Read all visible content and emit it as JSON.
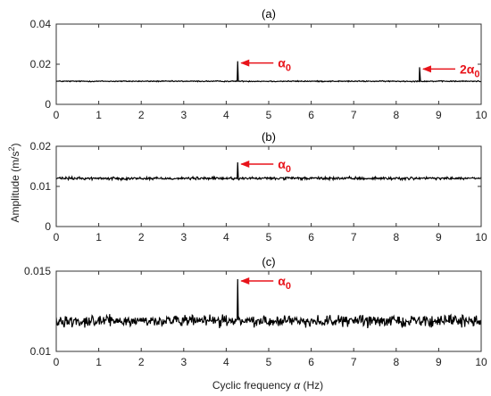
{
  "colors": {
    "trace": "#000000",
    "annotation": "#e8141b",
    "axis": "#333333"
  },
  "figure": {
    "ylabel_text": "Amplitude (m/s",
    "ylabel_sup": "2",
    "ylabel_close": ")",
    "xlabel_text": "Cyclic frequency ",
    "xlabel_symbol": "α",
    "xlabel_unit": " (Hz)"
  },
  "chart_data": [
    {
      "type": "line",
      "title": "(a)",
      "xlim": [
        0,
        10
      ],
      "ylim": [
        0,
        0.04
      ],
      "xticks": [
        0,
        1,
        2,
        3,
        4,
        5,
        6,
        7,
        8,
        9,
        10
      ],
      "xtick_labels": [
        "0",
        "1",
        "2",
        "3",
        "4",
        "5",
        "6",
        "7",
        "8",
        "9",
        "10"
      ],
      "yticks": [
        0,
        0.02,
        0.04
      ],
      "ytick_labels": [
        "0",
        "0.02",
        "0.04"
      ],
      "baseline": 0.0115,
      "noise_amplitude": 0.0004,
      "peaks": [
        {
          "x": 4.27,
          "y": 0.0215
        },
        {
          "x": 8.55,
          "y": 0.0185
        }
      ],
      "annotations": [
        {
          "text": "α",
          "sub": "0",
          "x": 4.27,
          "y": 0.0215
        },
        {
          "text": "2α",
          "sub": "0",
          "x": 8.55,
          "y": 0.0185
        }
      ]
    },
    {
      "type": "line",
      "title": "(b)",
      "xlim": [
        0,
        10
      ],
      "ylim": [
        0,
        0.02
      ],
      "xticks": [
        0,
        1,
        2,
        3,
        4,
        5,
        6,
        7,
        8,
        9,
        10
      ],
      "xtick_labels": [
        "0",
        "1",
        "2",
        "3",
        "4",
        "5",
        "6",
        "7",
        "8",
        "9",
        "10"
      ],
      "yticks": [
        0,
        0.01,
        0.02
      ],
      "ytick_labels": [
        "0",
        "0.01",
        "0.02"
      ],
      "baseline": 0.012,
      "noise_amplitude": 0.0005,
      "peaks": [
        {
          "x": 4.27,
          "y": 0.016
        }
      ],
      "annotations": [
        {
          "text": "α",
          "sub": "0",
          "x": 4.27,
          "y": 0.016
        }
      ]
    },
    {
      "type": "line",
      "title": "(c)",
      "xlim": [
        0,
        10
      ],
      "ylim": [
        0.01,
        0.015
      ],
      "xticks": [
        0,
        1,
        2,
        3,
        4,
        5,
        6,
        7,
        8,
        9,
        10
      ],
      "xtick_labels": [
        "0",
        "1",
        "2",
        "3",
        "4",
        "5",
        "6",
        "7",
        "8",
        "9",
        "10"
      ],
      "yticks": [
        0.01,
        0.015
      ],
      "ytick_labels": [
        "0.01",
        "0.015"
      ],
      "baseline": 0.0119,
      "noise_amplitude": 0.0005,
      "peaks": [
        {
          "x": 4.27,
          "y": 0.0145
        }
      ],
      "annotations": [
        {
          "text": "α",
          "sub": "0",
          "x": 4.27,
          "y": 0.0145
        }
      ]
    }
  ]
}
